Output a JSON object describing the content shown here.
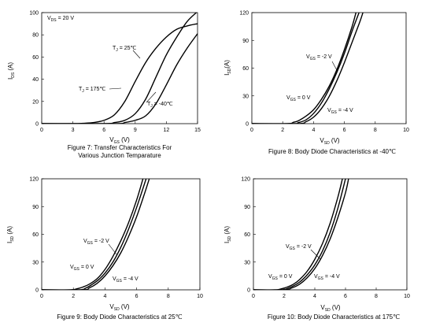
{
  "charts": [
    {
      "id": "fig7",
      "caption_line1": "Figure 7: Transfer Characteristics For",
      "caption_line2": "Various Junction Temparature",
      "chart_data": {
        "type": "line",
        "title": "",
        "xlabel": "V_GS (V)",
        "ylabel": "I_DS (A)",
        "xlim": [
          0,
          15
        ],
        "ylim": [
          0,
          100
        ],
        "xticks": [
          0,
          3,
          6,
          9,
          12,
          15
        ],
        "yticks": [
          0,
          20,
          40,
          60,
          80,
          100
        ],
        "grid": false,
        "annotations": [
          "V_DS = 20 V",
          "T_J = 25℃",
          "T_J = 175℃",
          "T_J = -40℃"
        ],
        "series": [
          {
            "x": [
              0,
              3,
              4,
              5,
              6,
              7,
              8,
              9,
              10,
              11,
              12,
              13,
              14,
              15
            ],
            "y": [
              0,
              0,
              0.3,
              1,
              3,
              8,
              20,
              38,
              55,
              68,
              78,
              85,
              88,
              90
            ]
          },
          {
            "x": [
              0,
              6,
              7,
              8,
              9,
              10,
              11,
              12,
              13,
              14,
              15
            ],
            "y": [
              0,
              0,
              1,
              3,
              9,
              22,
              42,
              62,
              78,
              92,
              101
            ]
          },
          {
            "x": [
              0,
              7,
              8,
              9,
              10,
              11,
              12,
              13,
              14,
              15
            ],
            "y": [
              0,
              0,
              1,
              3,
              7,
              18,
              35,
              53,
              68,
              81
            ]
          }
        ]
      }
    },
    {
      "id": "fig8",
      "caption_line1": "Figure 8: Body Diode Characteristics at -40℃",
      "caption_line2": "",
      "chart_data": {
        "type": "line",
        "title": "",
        "xlabel": "V_SD (V)",
        "ylabel": "I_SD(A)",
        "xlim": [
          0,
          10
        ],
        "ylim": [
          0,
          120
        ],
        "xticks": [
          0,
          2,
          4,
          6,
          8,
          10
        ],
        "yticks": [
          0,
          30,
          60,
          90,
          120
        ],
        "grid": false,
        "annotations": [
          "V_GS = -2 V",
          "V_GS = 0 V",
          "V_GS = -4 V"
        ],
        "series": [
          {
            "x": [
              0,
              2.3,
              2.7,
              3.0,
              3.5,
              4.0,
              4.5,
              5.0,
              5.5,
              6.0,
              6.5,
              6.75
            ],
            "y": [
              0,
              0,
              1.5,
              3,
              8,
              15,
              26,
              40,
              58,
              80,
              105,
              120
            ]
          },
          {
            "x": [
              0,
              2.7,
              3.0,
              3.5,
              4.0,
              4.5,
              5.0,
              5.5,
              6.0,
              6.5,
              6.95
            ],
            "y": [
              0,
              0,
              1,
              4,
              11,
              22,
              37,
              55,
              76,
              100,
              120
            ]
          },
          {
            "x": [
              0,
              3.0,
              3.5,
              4.0,
              4.5,
              5.0,
              5.5,
              6.0,
              6.5,
              7.0,
              7.2
            ],
            "y": [
              0,
              0,
              2,
              7,
              16,
              29,
              46,
              66,
              88,
              110,
              120
            ]
          }
        ]
      }
    },
    {
      "id": "fig9",
      "caption_line1": "Figure 9: Body Diode Characteristics at 25℃",
      "caption_line2": "",
      "chart_data": {
        "type": "line",
        "title": "",
        "xlabel": "V_SD (V)",
        "ylabel": "I_SD (A)",
        "xlim": [
          0,
          10
        ],
        "ylim": [
          0,
          120
        ],
        "xticks": [
          0,
          2,
          4,
          6,
          8,
          10
        ],
        "yticks": [
          0,
          30,
          60,
          90,
          120
        ],
        "grid": false,
        "annotations": [
          "V_GS = -2 V",
          "V_GS = 0 V",
          "V_GS = -4 V"
        ],
        "series": [
          {
            "x": [
              0,
              1.8,
              2.2,
              2.6,
              3.0,
              3.5,
              4.0,
              4.5,
              5.0,
              5.5,
              6.0,
              6.4
            ],
            "y": [
              0,
              0,
              1,
              3,
              6,
              12,
              22,
              36,
              53,
              73,
              97,
              120
            ]
          },
          {
            "x": [
              0,
              2.3,
              2.8,
              3.2,
              3.6,
              4.0,
              4.5,
              5.0,
              5.5,
              6.0,
              6.6
            ],
            "y": [
              0,
              0,
              2,
              6,
              11,
              18,
              30,
              46,
              66,
              89,
              120
            ]
          },
          {
            "x": [
              0,
              2.6,
              3.0,
              3.5,
              4.0,
              4.5,
              5.0,
              5.5,
              6.0,
              6.5,
              6.8
            ],
            "y": [
              0,
              0,
              2,
              7,
              15,
              26,
              40,
              58,
              79,
              104,
              120
            ]
          }
        ]
      }
    },
    {
      "id": "fig10",
      "caption_line1": "Figure 10: Body Diode Characteristics at 175℃",
      "caption_line2": "",
      "chart_data": {
        "type": "line",
        "title": "",
        "xlabel": "V_SD (V)",
        "ylabel": "I_SD (A)",
        "xlim": [
          0,
          10
        ],
        "ylim": [
          0,
          120
        ],
        "xticks": [
          0,
          2,
          4,
          6,
          8,
          10
        ],
        "yticks": [
          0,
          30,
          60,
          90,
          120
        ],
        "grid": false,
        "annotations": [
          "V_GS = -2 V",
          "V_GS = 0 V",
          "V_GS = -4 V"
        ],
        "series": [
          {
            "x": [
              0,
              1.4,
              1.8,
              2.2,
              2.6,
              3.0,
              3.5,
              4.0,
              4.5,
              5.0,
              5.5,
              5.8
            ],
            "y": [
              0,
              0,
              1,
              3,
              6,
              11,
              20,
              33,
              50,
              72,
              100,
              120
            ]
          },
          {
            "x": [
              0,
              1.8,
              2.3,
              2.8,
              3.2,
              3.6,
              4.0,
              4.5,
              5.0,
              5.5,
              6.0
            ],
            "y": [
              0,
              0,
              2,
              6,
              11,
              18,
              27,
              42,
              62,
              88,
              120
            ]
          },
          {
            "x": [
              0,
              2.0,
              2.5,
              3.0,
              3.5,
              4.0,
              4.5,
              5.0,
              5.5,
              6.0,
              6.2
            ],
            "y": [
              0,
              0,
              2,
              6,
              13,
              23,
              37,
              55,
              78,
              105,
              120
            ]
          }
        ]
      }
    }
  ]
}
